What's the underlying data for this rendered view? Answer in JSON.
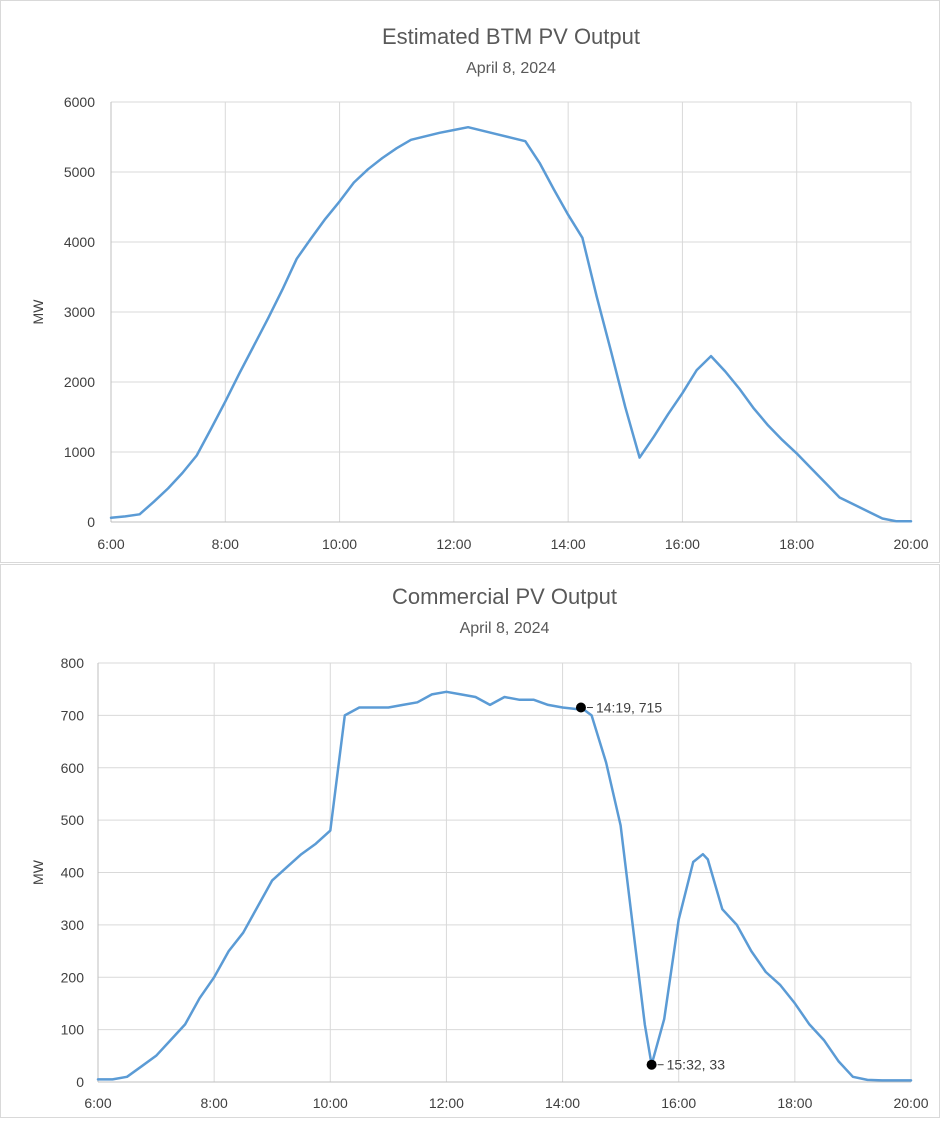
{
  "chart_data": [
    {
      "type": "line",
      "title": "Estimated BTM PV Output",
      "subtitle": "April 8, 2024",
      "xlabel": "",
      "ylabel": "MW",
      "xlim": [
        "6:00",
        "20:00"
      ],
      "ylim": [
        0,
        6000
      ],
      "x_ticks": [
        "6:00",
        "8:00",
        "10:00",
        "12:00",
        "14:00",
        "16:00",
        "18:00",
        "20:00"
      ],
      "y_ticks": [
        0,
        1000,
        2000,
        3000,
        4000,
        5000,
        6000
      ],
      "grid": true,
      "color": "#5b9bd5",
      "series": [
        {
          "x": [
            "6:00",
            "6:15",
            "6:30",
            "6:45",
            "7:00",
            "7:15",
            "7:30",
            "7:45",
            "8:00",
            "8:15",
            "8:30",
            "8:45",
            "9:00",
            "9:15",
            "9:30",
            "9:45",
            "10:00",
            "10:15",
            "10:30",
            "10:45",
            "11:00",
            "11:15",
            "11:30",
            "11:45",
            "12:00",
            "12:15",
            "12:30",
            "12:45",
            "13:00",
            "13:15",
            "13:30",
            "13:45",
            "14:00",
            "14:15",
            "14:30",
            "14:45",
            "15:00",
            "15:15",
            "15:30",
            "15:45",
            "16:00",
            "16:15",
            "16:30",
            "16:45",
            "17:00",
            "17:15",
            "17:30",
            "17:45",
            "18:00",
            "18:15",
            "18:30",
            "18:45",
            "19:00",
            "19:15",
            "19:30",
            "19:45",
            "20:00"
          ],
          "values": [
            60,
            80,
            110,
            290,
            480,
            700,
            950,
            1330,
            1720,
            2130,
            2520,
            2910,
            3320,
            3760,
            4050,
            4330,
            4580,
            4850,
            5040,
            5200,
            5340,
            5460,
            5510,
            5560,
            5600,
            5640,
            5590,
            5540,
            5490,
            5440,
            5130,
            4750,
            4390,
            4060,
            3220,
            2440,
            1640,
            920,
            1220,
            1540,
            1840,
            2170,
            2370,
            2150,
            1900,
            1620,
            1380,
            1170,
            980,
            770,
            560,
            350,
            250,
            150,
            50,
            10,
            10
          ]
        }
      ]
    },
    {
      "type": "line",
      "title": "Commercial PV Output",
      "subtitle": "April 8, 2024",
      "xlabel": "",
      "ylabel": "MW",
      "xlim": [
        "6:00",
        "20:00"
      ],
      "ylim": [
        0,
        800
      ],
      "x_ticks": [
        "6:00",
        "8:00",
        "10:00",
        "12:00",
        "14:00",
        "16:00",
        "18:00",
        "20:00"
      ],
      "y_ticks": [
        0,
        100,
        200,
        300,
        400,
        500,
        600,
        700,
        800
      ],
      "grid": true,
      "color": "#5b9bd5",
      "series": [
        {
          "x": [
            "6:00",
            "6:15",
            "6:30",
            "6:45",
            "7:00",
            "7:15",
            "7:30",
            "7:45",
            "8:00",
            "8:15",
            "8:30",
            "8:45",
            "9:00",
            "9:15",
            "9:30",
            "9:45",
            "10:00",
            "10:15",
            "10:30",
            "10:45",
            "11:00",
            "11:15",
            "11:30",
            "11:45",
            "12:00",
            "12:15",
            "12:30",
            "12:45",
            "13:00",
            "13:15",
            "13:30",
            "13:45",
            "14:00",
            "14:15",
            "14:19",
            "14:30",
            "14:45",
            "15:00",
            "15:15",
            "15:25",
            "15:32",
            "15:45",
            "16:00",
            "16:15",
            "16:25",
            "16:30",
            "16:45",
            "17:00",
            "17:15",
            "17:30",
            "17:45",
            "18:00",
            "18:15",
            "18:30",
            "18:45",
            "19:00",
            "19:15",
            "19:30",
            "19:45",
            "20:00"
          ],
          "values": [
            5,
            5,
            10,
            30,
            50,
            80,
            110,
            160,
            200,
            250,
            285,
            335,
            385,
            410,
            435,
            455,
            480,
            700,
            715,
            715,
            715,
            720,
            725,
            740,
            745,
            740,
            735,
            720,
            735,
            730,
            730,
            720,
            715,
            712,
            715,
            700,
            610,
            490,
            260,
            110,
            33,
            120,
            310,
            420,
            435,
            425,
            330,
            300,
            250,
            210,
            185,
            150,
            110,
            80,
            40,
            10,
            4,
            3,
            3,
            3
          ]
        }
      ],
      "annotations": [
        {
          "x": "14:19",
          "y": 715,
          "label": "14:19, 715"
        },
        {
          "x": "15:32",
          "y": 33,
          "label": "15:32, 33"
        }
      ]
    }
  ]
}
